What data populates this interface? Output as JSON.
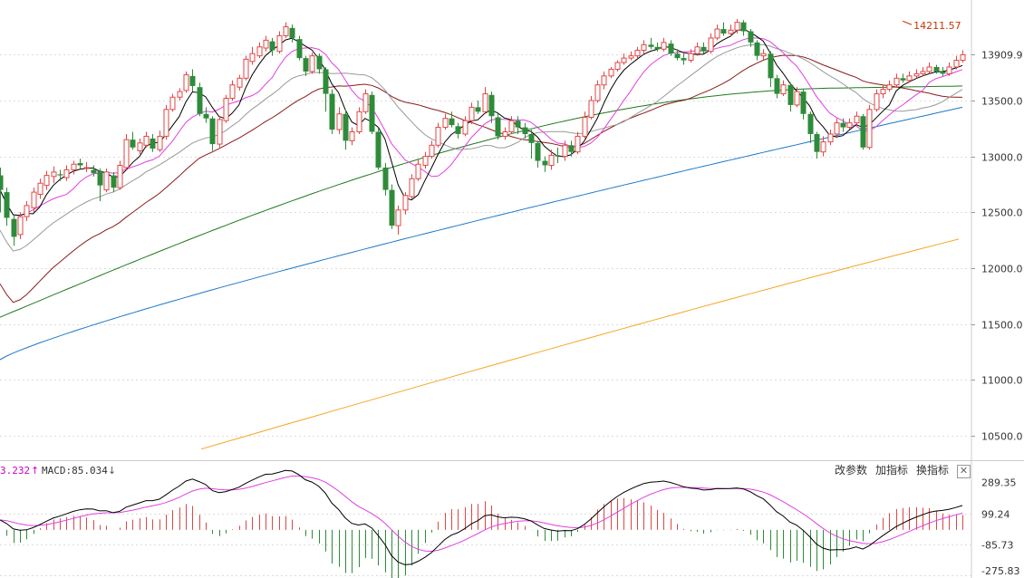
{
  "colors": {
    "up": "#e04646",
    "down": "#2e8b3a",
    "ma5": "#000000",
    "ma10": "#e040e0",
    "ma20": "#999999",
    "ma30": "#8b1a1a",
    "ma60": "#1f7a1f",
    "ma120": "#1c78c8",
    "ma250": "#f5a623",
    "dif": "#000000",
    "dea": "#e040e0",
    "grid": "#dcdcdc"
  },
  "toolbar": {
    "change_params": "改参数",
    "add_indicator": "加指标",
    "switch_indicator": "换指标",
    "close": "✕"
  },
  "indicator_readout": {
    "dif_value": "3.232",
    "macd_value": "MACD:85.034"
  },
  "chart_data": [
    {
      "type": "candlestick",
      "name": "price",
      "yticks": [
        "13909.9",
        "13500.0",
        "13000.0",
        "12500.0",
        "12000.0",
        "11500.0",
        "11000.0",
        "10500.0"
      ],
      "ytick_values": [
        13909.9,
        13500,
        13000,
        12500,
        12000,
        11500,
        11000,
        10500
      ],
      "ylim": [
        10280,
        14400
      ],
      "grid": true,
      "annotation": {
        "label": "14211.57",
        "value": 14211.57,
        "index": 136
      },
      "candles": [
        [
          12830,
          12700,
          12900,
          12500
        ],
        [
          12680,
          12450,
          12720,
          12380
        ],
        [
          12440,
          12280,
          12480,
          12200
        ],
        [
          12300,
          12460,
          12500,
          12260
        ],
        [
          12460,
          12560,
          12600,
          12420
        ],
        [
          12540,
          12680,
          12720,
          12500
        ],
        [
          12660,
          12760,
          12800,
          12620
        ],
        [
          12740,
          12830,
          12870,
          12700
        ],
        [
          12820,
          12860,
          12910,
          12760
        ],
        [
          12840,
          12830,
          12880,
          12780
        ],
        [
          12810,
          12880,
          12920,
          12780
        ],
        [
          12880,
          12930,
          12960,
          12840
        ],
        [
          12940,
          12920,
          12980,
          12890
        ],
        [
          12900,
          12900,
          12950,
          12860
        ],
        [
          12880,
          12850,
          12920,
          12820
        ],
        [
          12870,
          12740,
          12890,
          12600
        ],
        [
          12700,
          12860,
          12890,
          12680
        ],
        [
          12830,
          12720,
          12860,
          12680
        ],
        [
          12720,
          12920,
          12960,
          12700
        ],
        [
          12900,
          13150,
          13200,
          12880
        ],
        [
          13150,
          13080,
          13220,
          13060
        ],
        [
          13050,
          13120,
          13160,
          13020
        ],
        [
          13100,
          13180,
          13220,
          13080
        ],
        [
          13160,
          13070,
          13200,
          13040
        ],
        [
          13060,
          13180,
          13230,
          13040
        ],
        [
          13180,
          13420,
          13460,
          13150
        ],
        [
          13420,
          13530,
          13560,
          13400
        ],
        [
          13530,
          13580,
          13610,
          13500
        ],
        [
          13590,
          13730,
          13760,
          13570
        ],
        [
          13720,
          13630,
          13780,
          13580
        ],
        [
          13620,
          13380,
          13660,
          13360
        ],
        [
          13380,
          13340,
          13440,
          13300
        ],
        [
          13340,
          13110,
          13360,
          13050
        ],
        [
          13110,
          13330,
          13360,
          13080
        ],
        [
          13320,
          13520,
          13550,
          13300
        ],
        [
          13520,
          13640,
          13680,
          13500
        ],
        [
          13620,
          13700,
          13730,
          13590
        ],
        [
          13700,
          13870,
          13900,
          13680
        ],
        [
          13850,
          13920,
          13980,
          13820
        ],
        [
          13900,
          13980,
          14020,
          13880
        ],
        [
          13970,
          14040,
          14080,
          13940
        ],
        [
          14030,
          13950,
          14060,
          13900
        ],
        [
          13940,
          14080,
          14120,
          13920
        ],
        [
          14080,
          14160,
          14200,
          14060
        ],
        [
          14150,
          14060,
          14180,
          14020
        ],
        [
          14050,
          13880,
          14080,
          13860
        ],
        [
          13880,
          13760,
          13900,
          13720
        ],
        [
          13760,
          13900,
          13930,
          13740
        ],
        [
          13900,
          13780,
          13920,
          13740
        ],
        [
          13780,
          13560,
          13800,
          13400
        ],
        [
          13560,
          13240,
          13600,
          13200
        ],
        [
          13240,
          13380,
          13440,
          13200
        ],
        [
          13380,
          13140,
          13420,
          13060
        ],
        [
          13140,
          13220,
          13260,
          13100
        ],
        [
          13220,
          13400,
          13440,
          13200
        ],
        [
          13400,
          13560,
          13600,
          13380
        ],
        [
          13550,
          13220,
          13580,
          13200
        ],
        [
          13220,
          12900,
          13260,
          12880
        ],
        [
          12900,
          12700,
          12940,
          12650
        ],
        [
          12700,
          12380,
          12750,
          12350
        ],
        [
          12380,
          12520,
          12560,
          12300
        ],
        [
          12520,
          12650,
          12680,
          12480
        ],
        [
          12640,
          12800,
          12840,
          12620
        ],
        [
          12800,
          12930,
          12970,
          12780
        ],
        [
          12920,
          13000,
          13040,
          12890
        ],
        [
          13000,
          13100,
          13140,
          12980
        ],
        [
          13100,
          13260,
          13300,
          13080
        ],
        [
          13260,
          13340,
          13380,
          13240
        ],
        [
          13340,
          13280,
          13400,
          13260
        ],
        [
          13270,
          13200,
          13300,
          13160
        ],
        [
          13200,
          13320,
          13360,
          13180
        ],
        [
          13320,
          13440,
          13480,
          13290
        ],
        [
          13440,
          13400,
          13500,
          13380
        ],
        [
          13400,
          13560,
          13620,
          13380
        ],
        [
          13550,
          13360,
          13580,
          13300
        ],
        [
          13350,
          13180,
          13380,
          13150
        ],
        [
          13180,
          13220,
          13260,
          13150
        ],
        [
          13220,
          13320,
          13360,
          13200
        ],
        [
          13320,
          13260,
          13360,
          13200
        ],
        [
          13260,
          13200,
          13300,
          13160
        ],
        [
          13200,
          13120,
          13240,
          12980
        ],
        [
          13120,
          12960,
          13140,
          12900
        ],
        [
          12960,
          12920,
          13000,
          12860
        ],
        [
          12920,
          13010,
          13060,
          12880
        ],
        [
          13010,
          13000,
          13080,
          12940
        ],
        [
          13000,
          13100,
          13140,
          12960
        ],
        [
          13100,
          13040,
          13140,
          13000
        ],
        [
          13040,
          13180,
          13220,
          13020
        ],
        [
          13180,
          13350,
          13400,
          13160
        ],
        [
          13350,
          13500,
          13540,
          13330
        ],
        [
          13500,
          13640,
          13680,
          13480
        ],
        [
          13640,
          13720,
          13760,
          13600
        ],
        [
          13720,
          13780,
          13800,
          13700
        ],
        [
          13780,
          13840,
          13860,
          13760
        ],
        [
          13840,
          13880,
          13920,
          13820
        ],
        [
          13880,
          13900,
          13940,
          13860
        ],
        [
          13900,
          13950,
          13980,
          13880
        ],
        [
          13950,
          14000,
          14040,
          13920
        ],
        [
          14000,
          13980,
          14060,
          13960
        ],
        [
          13980,
          13960,
          14020,
          13940
        ],
        [
          13960,
          14020,
          14060,
          13940
        ],
        [
          14010,
          13920,
          14040,
          13900
        ],
        [
          13920,
          13880,
          13960,
          13860
        ],
        [
          13880,
          13860,
          13920,
          13820
        ],
        [
          13860,
          13920,
          13960,
          13840
        ],
        [
          13920,
          13980,
          14020,
          13900
        ],
        [
          13980,
          13940,
          14020,
          13920
        ],
        [
          13940,
          14060,
          14100,
          13920
        ],
        [
          14060,
          14140,
          14180,
          14040
        ],
        [
          14140,
          14100,
          14200,
          14080
        ],
        [
          14100,
          14130,
          14180,
          14070
        ],
        [
          14130,
          14200,
          14230,
          14100
        ],
        [
          14200,
          14120,
          14220,
          14080
        ],
        [
          14120,
          14020,
          14140,
          13980
        ],
        [
          14020,
          13900,
          14040,
          13860
        ],
        [
          13900,
          13920,
          13960,
          13860
        ],
        [
          13920,
          13700,
          13940,
          13620
        ],
        [
          13700,
          13560,
          13730,
          13520
        ],
        [
          13560,
          13640,
          13680,
          13540
        ],
        [
          13640,
          13460,
          13660,
          13400
        ],
        [
          13460,
          13580,
          13620,
          13440
        ],
        [
          13580,
          13380,
          13600,
          13330
        ],
        [
          13380,
          13200,
          13400,
          13120
        ],
        [
          13200,
          13040,
          13220,
          12980
        ],
        [
          13040,
          13130,
          13180,
          13000
        ],
        [
          13130,
          13200,
          13240,
          13100
        ],
        [
          13200,
          13300,
          13340,
          13180
        ],
        [
          13300,
          13260,
          13340,
          13220
        ],
        [
          13260,
          13300,
          13340,
          13240
        ],
        [
          13300,
          13360,
          13400,
          13280
        ],
        [
          13360,
          13080,
          13380,
          13060
        ],
        [
          13080,
          13420,
          13460,
          13060
        ],
        [
          13420,
          13560,
          13600,
          13400
        ],
        [
          13560,
          13600,
          13640,
          13520
        ],
        [
          13600,
          13640,
          13680,
          13580
        ],
        [
          13640,
          13700,
          13740,
          13620
        ],
        [
          13700,
          13680,
          13740,
          13660
        ],
        [
          13680,
          13720,
          13760,
          13660
        ],
        [
          13720,
          13740,
          13780,
          13700
        ],
        [
          13740,
          13760,
          13800,
          13720
        ],
        [
          13760,
          13800,
          13840,
          13740
        ],
        [
          13800,
          13760,
          13820,
          13740
        ],
        [
          13760,
          13740,
          13800,
          13720
        ],
        [
          13740,
          13800,
          13840,
          13720
        ],
        [
          13800,
          13860,
          13900,
          13780
        ],
        [
          13860,
          13910,
          13950,
          13840
        ]
      ],
      "moving_averages": [
        {
          "key": "ma250",
          "values": [
            10380,
            12260
          ]
        }
      ]
    },
    {
      "type": "macd",
      "name": "MACD",
      "yticks": [
        "289.35",
        "99.24",
        "-85.73",
        "-275.83"
      ],
      "ytick_values": [
        289.35,
        99.24,
        -85.73,
        -275.83
      ],
      "ylim": [
        -290,
        300
      ]
    }
  ]
}
